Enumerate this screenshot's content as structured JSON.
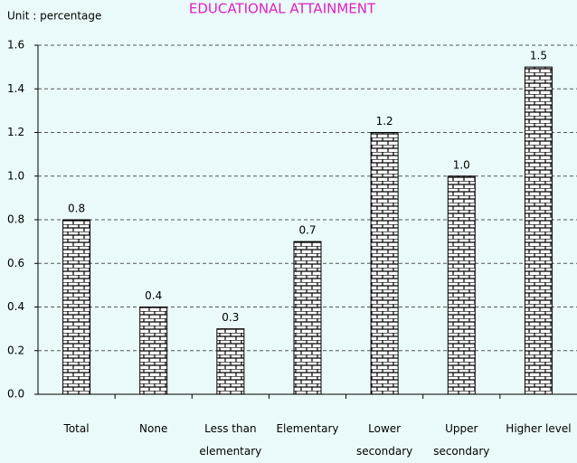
{
  "chart_data": {
    "type": "bar",
    "title": "EDUCATIONAL ATTAINMENT",
    "subtitle": "Unit : percentage",
    "categories": [
      "Total",
      "None",
      "Less than elementary",
      "Elementary",
      "Lower secondary",
      "Upper secondary",
      "Higher level"
    ],
    "values": [
      0.8,
      0.4,
      0.3,
      0.7,
      1.2,
      1.0,
      1.5
    ],
    "value_labels": [
      "0.8",
      "0.4",
      "0.3",
      "0.7",
      "1.2",
      "1.0",
      "1.5"
    ],
    "color": "#000000",
    "ylim": [
      0,
      1.6
    ],
    "yticks": [
      {
        "value": 0,
        "label": "0.0"
      },
      0.2,
      0.4,
      0.6,
      0.8,
      {
        "value": 1,
        "label": "1.0"
      },
      1.2,
      1.4,
      1.6
    ],
    "grid": true
  }
}
